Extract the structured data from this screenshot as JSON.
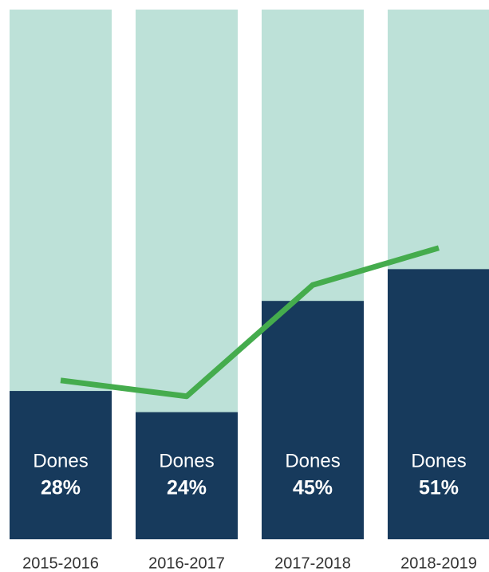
{
  "chart_data": {
    "type": "bar",
    "categories": [
      "2015-2016",
      "2016-2017",
      "2017-2018",
      "2018-2019"
    ],
    "series": [
      {
        "name": "Dones",
        "color": "#173a5c",
        "values": [
          28,
          24,
          45,
          51
        ],
        "value_labels": [
          "28%",
          "24%",
          "45%",
          "51%"
        ]
      }
    ],
    "track_color": "#bde1d8",
    "line": {
      "color": "#45ac4d",
      "values": [
        30,
        27,
        48,
        55
      ]
    },
    "ylim": [
      0,
      100
    ]
  }
}
